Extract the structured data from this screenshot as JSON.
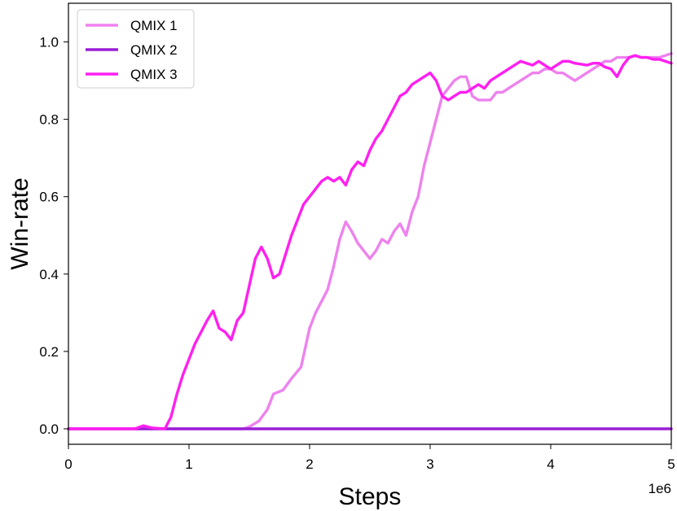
{
  "chart_data": {
    "type": "line",
    "title": "",
    "xlabel": "Steps",
    "ylabel": "Win-rate",
    "x_offset_label": "1e6",
    "xlim": [
      0,
      5
    ],
    "ylim": [
      -0.04,
      1.1
    ],
    "x_ticks": [
      0,
      1,
      2,
      3,
      4,
      5
    ],
    "x_tick_labels": [
      "0",
      "1",
      "2",
      "3",
      "4",
      "5"
    ],
    "y_ticks": [
      0.0,
      0.2,
      0.4,
      0.6,
      0.8,
      1.0
    ],
    "y_tick_labels": [
      "0.0",
      "0.2",
      "0.4",
      "0.6",
      "0.8",
      "1.0"
    ],
    "grid": false,
    "legend_position": "top-left",
    "series": [
      {
        "name": "QMIX 1",
        "color": "#ee82ee",
        "points": [
          [
            0,
            0
          ],
          [
            1.45,
            0
          ],
          [
            1.5,
            0.005
          ],
          [
            1.58,
            0.02
          ],
          [
            1.65,
            0.05
          ],
          [
            1.7,
            0.09
          ],
          [
            1.78,
            0.1
          ],
          [
            1.85,
            0.13
          ],
          [
            1.93,
            0.16
          ],
          [
            2.0,
            0.26
          ],
          [
            2.05,
            0.3
          ],
          [
            2.1,
            0.33
          ],
          [
            2.15,
            0.36
          ],
          [
            2.2,
            0.42
          ],
          [
            2.25,
            0.49
          ],
          [
            2.3,
            0.535
          ],
          [
            2.35,
            0.51
          ],
          [
            2.4,
            0.48
          ],
          [
            2.45,
            0.46
          ],
          [
            2.5,
            0.44
          ],
          [
            2.55,
            0.46
          ],
          [
            2.6,
            0.49
          ],
          [
            2.65,
            0.48
          ],
          [
            2.7,
            0.51
          ],
          [
            2.75,
            0.53
          ],
          [
            2.8,
            0.5
          ],
          [
            2.85,
            0.56
          ],
          [
            2.9,
            0.6
          ],
          [
            2.95,
            0.68
          ],
          [
            3.0,
            0.74
          ],
          [
            3.05,
            0.8
          ],
          [
            3.1,
            0.86
          ],
          [
            3.15,
            0.88
          ],
          [
            3.2,
            0.9
          ],
          [
            3.25,
            0.91
          ],
          [
            3.3,
            0.91
          ],
          [
            3.35,
            0.86
          ],
          [
            3.4,
            0.85
          ],
          [
            3.45,
            0.85
          ],
          [
            3.5,
            0.85
          ],
          [
            3.55,
            0.87
          ],
          [
            3.6,
            0.87
          ],
          [
            3.65,
            0.88
          ],
          [
            3.7,
            0.89
          ],
          [
            3.75,
            0.9
          ],
          [
            3.8,
            0.91
          ],
          [
            3.85,
            0.92
          ],
          [
            3.9,
            0.92
          ],
          [
            3.95,
            0.93
          ],
          [
            4.0,
            0.93
          ],
          [
            4.05,
            0.92
          ],
          [
            4.1,
            0.92
          ],
          [
            4.15,
            0.91
          ],
          [
            4.2,
            0.9
          ],
          [
            4.25,
            0.91
          ],
          [
            4.3,
            0.92
          ],
          [
            4.35,
            0.93
          ],
          [
            4.4,
            0.94
          ],
          [
            4.45,
            0.95
          ],
          [
            4.5,
            0.95
          ],
          [
            4.55,
            0.96
          ],
          [
            4.6,
            0.96
          ],
          [
            4.65,
            0.96
          ],
          [
            4.7,
            0.965
          ],
          [
            4.75,
            0.96
          ],
          [
            4.8,
            0.96
          ],
          [
            4.85,
            0.96
          ],
          [
            4.9,
            0.96
          ],
          [
            4.95,
            0.965
          ],
          [
            5.0,
            0.97
          ]
        ]
      },
      {
        "name": "QMIX 2",
        "color": "#9b1fd6",
        "points": [
          [
            0,
            0
          ],
          [
            5.0,
            0
          ]
        ]
      },
      {
        "name": "QMIX 3",
        "color": "#ff1ff0",
        "points": [
          [
            0,
            0
          ],
          [
            0.55,
            0
          ],
          [
            0.62,
            0.008
          ],
          [
            0.7,
            0.002
          ],
          [
            0.8,
            0.0
          ],
          [
            0.85,
            0.03
          ],
          [
            0.9,
            0.09
          ],
          [
            0.95,
            0.14
          ],
          [
            1.0,
            0.18
          ],
          [
            1.05,
            0.22
          ],
          [
            1.1,
            0.25
          ],
          [
            1.15,
            0.28
          ],
          [
            1.2,
            0.305
          ],
          [
            1.25,
            0.26
          ],
          [
            1.3,
            0.25
          ],
          [
            1.35,
            0.23
          ],
          [
            1.4,
            0.28
          ],
          [
            1.45,
            0.3
          ],
          [
            1.5,
            0.37
          ],
          [
            1.55,
            0.44
          ],
          [
            1.6,
            0.47
          ],
          [
            1.65,
            0.44
          ],
          [
            1.7,
            0.39
          ],
          [
            1.75,
            0.4
          ],
          [
            1.8,
            0.45
          ],
          [
            1.85,
            0.5
          ],
          [
            1.9,
            0.54
          ],
          [
            1.95,
            0.58
          ],
          [
            2.0,
            0.6
          ],
          [
            2.05,
            0.62
          ],
          [
            2.1,
            0.64
          ],
          [
            2.15,
            0.65
          ],
          [
            2.2,
            0.64
          ],
          [
            2.25,
            0.65
          ],
          [
            2.3,
            0.63
          ],
          [
            2.35,
            0.67
          ],
          [
            2.4,
            0.69
          ],
          [
            2.45,
            0.68
          ],
          [
            2.5,
            0.72
          ],
          [
            2.55,
            0.75
          ],
          [
            2.6,
            0.77
          ],
          [
            2.65,
            0.8
          ],
          [
            2.7,
            0.83
          ],
          [
            2.75,
            0.86
          ],
          [
            2.8,
            0.87
          ],
          [
            2.85,
            0.89
          ],
          [
            2.9,
            0.9
          ],
          [
            2.95,
            0.91
          ],
          [
            3.0,
            0.92
          ],
          [
            3.05,
            0.9
          ],
          [
            3.1,
            0.86
          ],
          [
            3.15,
            0.85
          ],
          [
            3.2,
            0.86
          ],
          [
            3.25,
            0.87
          ],
          [
            3.3,
            0.87
          ],
          [
            3.35,
            0.88
          ],
          [
            3.4,
            0.89
          ],
          [
            3.45,
            0.88
          ],
          [
            3.5,
            0.9
          ],
          [
            3.55,
            0.91
          ],
          [
            3.6,
            0.92
          ],
          [
            3.65,
            0.93
          ],
          [
            3.7,
            0.94
          ],
          [
            3.75,
            0.95
          ],
          [
            3.8,
            0.945
          ],
          [
            3.85,
            0.94
          ],
          [
            3.9,
            0.95
          ],
          [
            3.95,
            0.94
          ],
          [
            4.0,
            0.93
          ],
          [
            4.05,
            0.94
          ],
          [
            4.1,
            0.95
          ],
          [
            4.15,
            0.95
          ],
          [
            4.2,
            0.945
          ],
          [
            4.3,
            0.94
          ],
          [
            4.35,
            0.945
          ],
          [
            4.4,
            0.945
          ],
          [
            4.45,
            0.935
          ],
          [
            4.5,
            0.93
          ],
          [
            4.55,
            0.91
          ],
          [
            4.6,
            0.94
          ],
          [
            4.65,
            0.96
          ],
          [
            4.7,
            0.965
          ],
          [
            4.75,
            0.96
          ],
          [
            4.8,
            0.96
          ],
          [
            4.85,
            0.955
          ],
          [
            4.9,
            0.955
          ],
          [
            4.95,
            0.95
          ],
          [
            5.0,
            0.945
          ]
        ]
      }
    ]
  }
}
